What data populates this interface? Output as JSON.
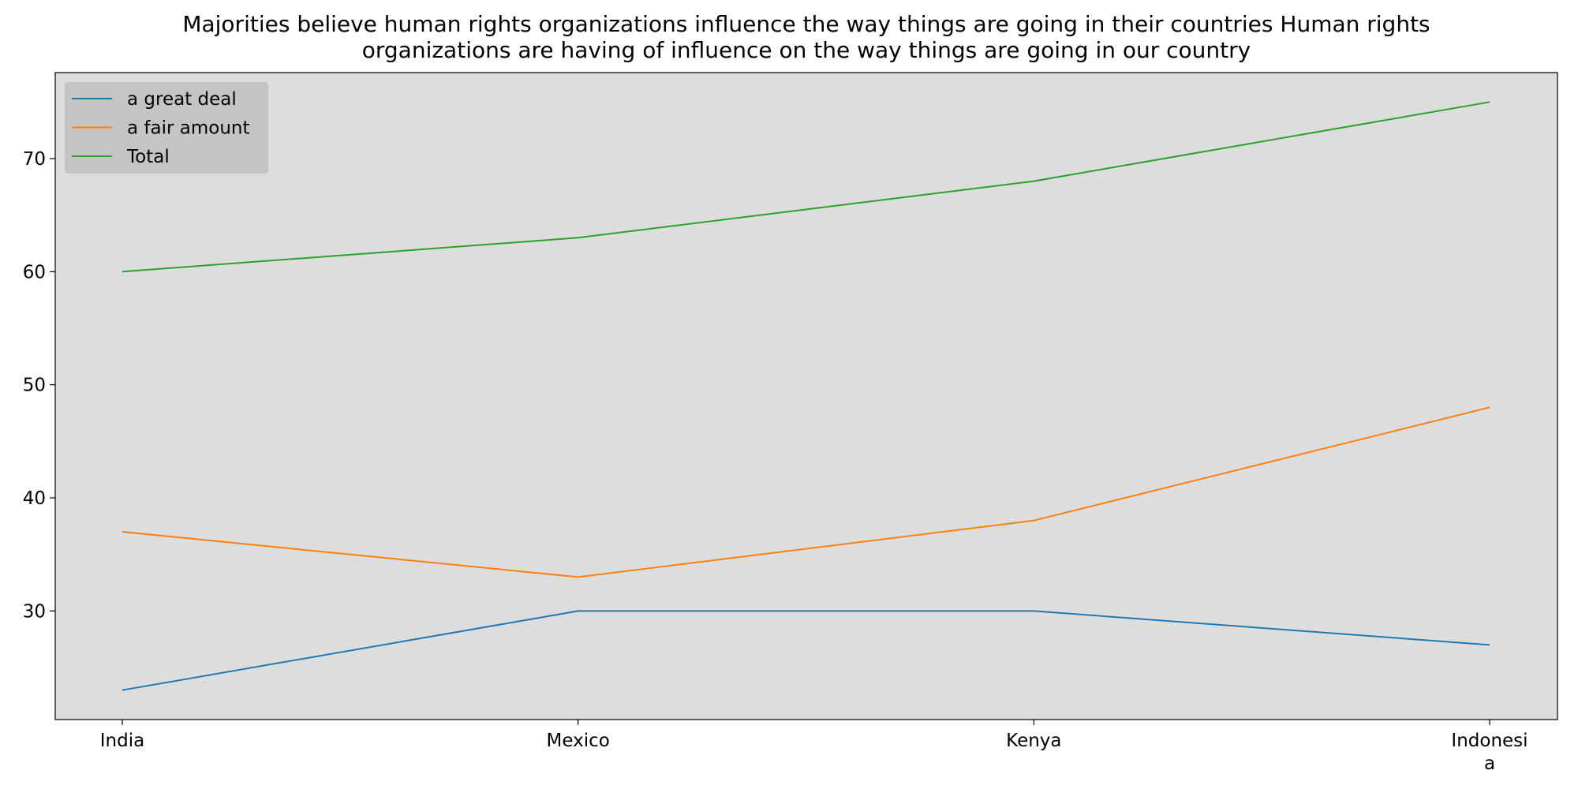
{
  "chart_data": {
    "type": "line",
    "title_lines": [
      "Majorities believe human rights organizations influence the way things are going in their countries Human rights",
      "organizations are having of influence on the way things are going in our country"
    ],
    "xlabel": "",
    "ylabel": "",
    "categories": [
      "India",
      "Mexico",
      "Kenya",
      "Indonesia"
    ],
    "category_tick_lines": [
      [
        "India"
      ],
      [
        "Mexico"
      ],
      [
        "Kenya"
      ],
      [
        "Indonesi",
        "a"
      ]
    ],
    "series": [
      {
        "name": "a great deal",
        "values": [
          23,
          30,
          30,
          27
        ],
        "color": "#1f77b4"
      },
      {
        "name": "a fair amount",
        "values": [
          37,
          33,
          38,
          48
        ],
        "color": "#ff7f0e"
      },
      {
        "name": "Total",
        "values": [
          60,
          63,
          68,
          75
        ],
        "color": "#2ca02c"
      }
    ],
    "ylim": [
      20.4,
      77.6
    ],
    "yticks": [
      30,
      40,
      50,
      60,
      70
    ],
    "grid": false,
    "legend_position": "top-left",
    "plot_background": "#dddddd",
    "legend_background": "#c4c4c4"
  }
}
